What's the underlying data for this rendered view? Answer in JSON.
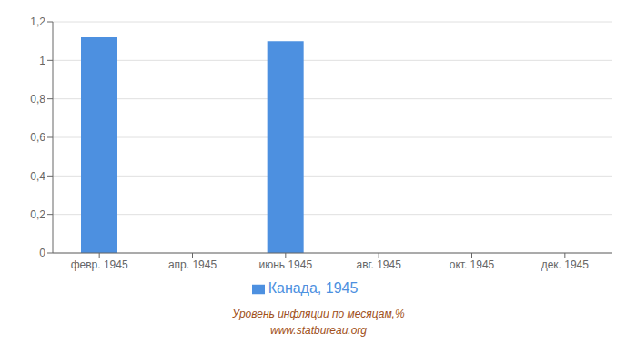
{
  "chart_data": {
    "type": "bar",
    "categories": [
      "февр. 1945",
      "апр. 1945",
      "июнь 1945",
      "авг. 1945",
      "окт. 1945",
      "дек. 1945"
    ],
    "series": [
      {
        "name": "Канада, 1945",
        "color": "#4d90e0",
        "values": [
          1.12,
          0,
          1.1,
          0,
          0,
          0
        ]
      }
    ],
    "ylim": [
      0,
      1.2
    ],
    "yticks": [
      0,
      {
        "value": 0.2,
        "label": "0,2"
      },
      {
        "value": 0.4,
        "label": "0,4"
      },
      {
        "value": 0.6,
        "label": "0,6"
      },
      {
        "value": 0.8,
        "label": "0,8"
      },
      1,
      {
        "value": 1.2,
        "label": "1,2"
      }
    ],
    "grid": true,
    "legend": "bottom",
    "annotations": [
      "Уровень инфляции по месяцам,%",
      "www.statbureau.org"
    ]
  }
}
